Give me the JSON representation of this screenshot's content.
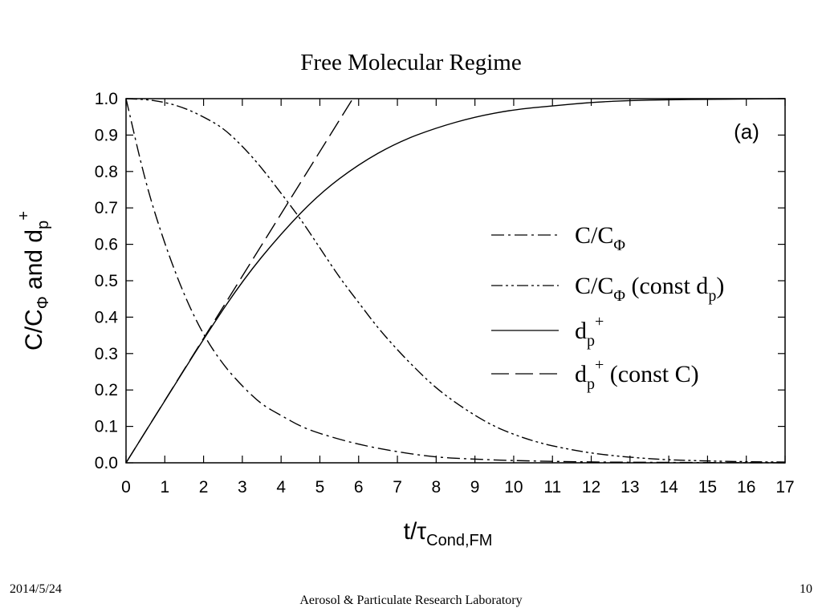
{
  "slide": {
    "title": "Free Molecular Regime",
    "date": "2014/5/24",
    "organization": "Aerosol & Particulate Research Laboratory",
    "page_number": "10"
  },
  "chart_data": {
    "type": "line",
    "title": "Free Molecular Regime",
    "panel_label": "(a)",
    "xlabel": {
      "main": "t/τ",
      "sub": "Cond,FM"
    },
    "ylabel": {
      "part1": "C/C",
      "sub1": "Φ",
      "part2": " and d",
      "sub2": "p",
      "sup2": "+"
    },
    "xlim": [
      0,
      17
    ],
    "ylim": [
      0,
      1
    ],
    "xticks": [
      "0",
      "1",
      "2",
      "3",
      "4",
      "5",
      "6",
      "7",
      "8",
      "9",
      "10",
      "11",
      "12",
      "13",
      "14",
      "15",
      "16",
      "17"
    ],
    "yticks": [
      "0.0",
      "0.1",
      "0.2",
      "0.3",
      "0.4",
      "0.5",
      "0.6",
      "0.7",
      "0.8",
      "0.9",
      "1.0"
    ],
    "grid": false,
    "legend_position": "right-middle",
    "series": [
      {
        "name": "C/CΦ",
        "label": {
          "main": "C/C",
          "sub": "Φ",
          "rest": ""
        },
        "style": "dash-dot",
        "x": [
          0,
          0.5,
          1,
          1.5,
          2,
          2.5,
          3,
          3.5,
          4,
          4.5,
          5,
          6,
          7,
          8,
          9,
          10,
          12,
          14,
          17
        ],
        "y": [
          1.0,
          0.77,
          0.6,
          0.46,
          0.35,
          0.27,
          0.21,
          0.16,
          0.13,
          0.1,
          0.08,
          0.05,
          0.03,
          0.015,
          0.01,
          0.006,
          0.002,
          0.001,
          0.0
        ]
      },
      {
        "name": "C/CΦ (const dp)",
        "label": {
          "main": "C/C",
          "sub": "Φ",
          "rest": " (const d",
          "sub2": "p",
          "close": ")"
        },
        "style": "dash-dot-dot",
        "x": [
          0,
          0.5,
          1,
          1.5,
          2,
          2.5,
          3,
          3.5,
          4,
          4.5,
          5,
          5.5,
          6,
          6.5,
          7,
          7.5,
          8,
          8.5,
          9,
          9.5,
          10,
          10.5,
          11,
          12,
          13,
          14,
          15,
          16,
          17
        ],
        "y": [
          1.0,
          0.998,
          0.99,
          0.975,
          0.95,
          0.92,
          0.87,
          0.81,
          0.74,
          0.67,
          0.59,
          0.51,
          0.44,
          0.37,
          0.31,
          0.255,
          0.205,
          0.165,
          0.13,
          0.1,
          0.078,
          0.06,
          0.046,
          0.026,
          0.015,
          0.008,
          0.005,
          0.003,
          0.002
        ]
      },
      {
        "name": "dp+",
        "label": {
          "main": "d",
          "sub": "p",
          "sup": "+"
        },
        "style": "solid",
        "x": [
          0,
          1,
          2,
          3,
          4,
          5,
          6,
          7,
          8,
          9,
          10,
          11,
          12,
          13,
          14,
          15,
          16,
          17
        ],
        "y": [
          0.0,
          0.17,
          0.34,
          0.5,
          0.63,
          0.74,
          0.82,
          0.88,
          0.92,
          0.95,
          0.97,
          0.98,
          0.99,
          0.995,
          0.997,
          0.998,
          0.999,
          1.0
        ]
      },
      {
        "name": "dp+ (const C)",
        "label": {
          "main": "d",
          "sub": "p",
          "sup": "+",
          "rest": " (const C)"
        },
        "style": "long-dash",
        "x": [
          0,
          5.85
        ],
        "y": [
          0.0,
          1.0
        ]
      }
    ]
  }
}
